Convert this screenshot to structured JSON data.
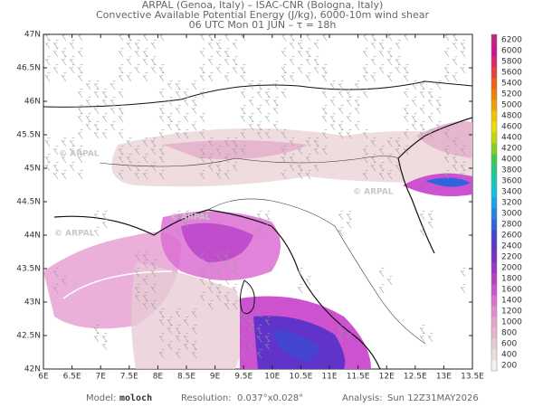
{
  "header": {
    "line1": "ARPAL (Genoa, Italy)  –  ISAC-CNR (Bologna, Italy)",
    "line2": "Convective Available Potential Energy (J/kg), 6000-10m wind shear",
    "line3": "06 UTC Mon 01 JUN  –  τ = 18h"
  },
  "map": {
    "lon_labels": [
      "6E",
      "6.5E",
      "7E",
      "7.5E",
      "8E",
      "8.5E",
      "9E",
      "9.5E",
      "10E",
      "10.5E",
      "11E",
      "11.5E",
      "12E",
      "12.5E",
      "13E",
      "13.5E"
    ],
    "lat_labels": [
      "42N",
      "42.5N",
      "43N",
      "43.5N",
      "44N",
      "44.5N",
      "45N",
      "45.5N",
      "46N",
      "46.5N",
      "47N"
    ],
    "watermark": "© ARPAL"
  },
  "colorbar": {
    "levels": [
      200,
      400,
      600,
      800,
      1000,
      1200,
      1400,
      1600,
      1800,
      2000,
      2200,
      2400,
      2600,
      2800,
      3000,
      3200,
      3400,
      3600,
      3800,
      4000,
      4200,
      4400,
      4600,
      4800,
      5000,
      5200,
      5400,
      5600,
      5800,
      6000,
      6200
    ],
    "colors": [
      "#f4f2f2",
      "#ece0dc",
      "#e8ccd4",
      "#e6b6cf",
      "#e8a2d2",
      "#e48ad0",
      "#dc6ed2",
      "#cc52d0",
      "#b840c8",
      "#9c34c4",
      "#7e30c4",
      "#6034c8",
      "#4446d2",
      "#3064de",
      "#2284e8",
      "#12a4ee",
      "#10c0e0",
      "#12c8b4",
      "#22c884",
      "#44c846",
      "#84d024",
      "#c2d804",
      "#e8e000",
      "#f0c200",
      "#f0a000",
      "#f08000",
      "#f06010",
      "#e84040",
      "#e02464",
      "#d01490",
      "#c8208c"
    ]
  },
  "footer": {
    "model_label": "Model:",
    "model": "moloch",
    "res_label": "Resolution:",
    "res": "0.037°x0.028°",
    "an_label": "Analysis:",
    "an": "Sun 12Z31MAY2026"
  }
}
